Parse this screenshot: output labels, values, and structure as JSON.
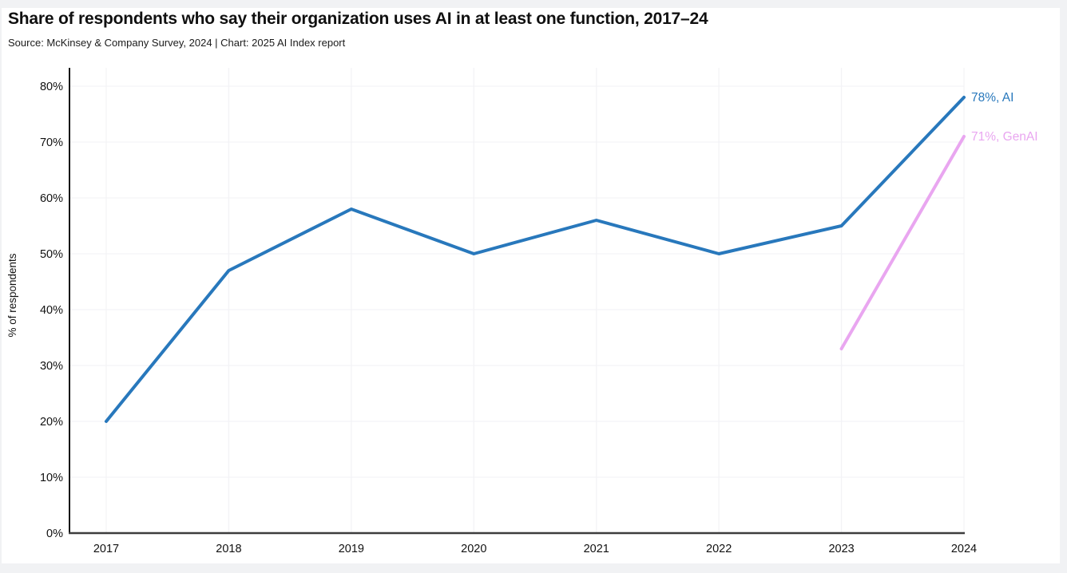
{
  "page": {
    "title": "Share of respondents who say their organization uses AI in at least one function, 2017–24",
    "subtitle": "Source: McKinsey & Company Survey, 2024 | Chart: 2025 AI Index report"
  },
  "chart_data": {
    "type": "line",
    "title": "Share of respondents who say their organization uses AI in at least one function, 2017–24",
    "source_note": "Source: McKinsey & Company Survey, 2024 | Chart: 2025 AI Index report",
    "xlabel": "",
    "ylabel": "% of respondents",
    "categories": [
      "2017",
      "2018",
      "2019",
      "2020",
      "2021",
      "2022",
      "2023",
      "2024"
    ],
    "y_ticks": [
      "0%",
      "10%",
      "20%",
      "30%",
      "40%",
      "50%",
      "60%",
      "70%",
      "80%"
    ],
    "ylim": [
      0,
      80
    ],
    "grid": true,
    "legend_position": "end-of-line-labels",
    "series": [
      {
        "name": "AI",
        "color": "#2878bc",
        "end_label": "78%, AI",
        "values": [
          20,
          47,
          58,
          50,
          56,
          50,
          55,
          78
        ]
      },
      {
        "name": "GenAI",
        "color": "#e9a6f0",
        "end_label": "71%, GenAI",
        "values": [
          null,
          null,
          null,
          null,
          null,
          null,
          33,
          71
        ]
      }
    ]
  },
  "colors": {
    "page_background": "#f1f2f4",
    "card_background": "#ffffff",
    "grid_line": "#f3f3f6",
    "y_axis": "#141414",
    "x_axis": "#3d3d3d",
    "tick_text": "#111111",
    "ai_line": "#2878bc",
    "genai_line": "#e9a6f0"
  }
}
